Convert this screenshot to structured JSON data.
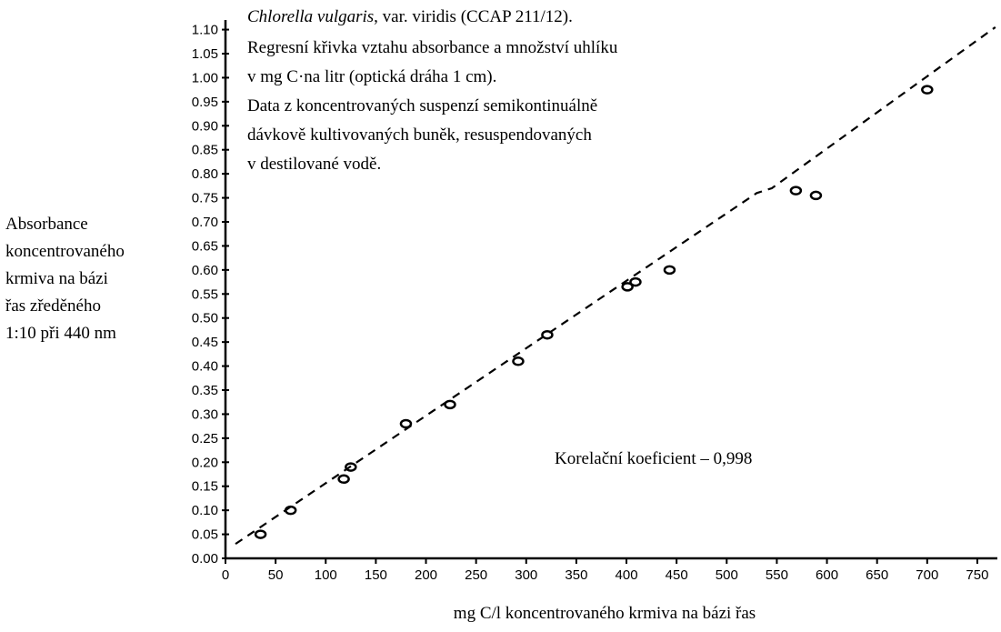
{
  "chart_data": {
    "type": "scatter",
    "title": [
      "Chlorella vulgaris",
      ", var. viridis (CCAP 211/12)."
    ],
    "subtitle": [
      "Regresní křivka vztahu absorbance a množství uhlíku",
      "v mg C·na litr (optická dráha 1 cm).",
      "Data z koncentrovaných suspenzí semikontinuálně",
      "dávkově kultivovaných buněk, resuspendovaných",
      "v destilované vodě."
    ],
    "y_label": [
      "Absorbance",
      "koncentrovaného",
      "krmiva na bázi",
      "řas zředěného",
      "1:10 při 440 nm"
    ],
    "x_label": "mg C/l koncentrovaného krmiva na bázi řas",
    "annotation": "Korelační koeficient – 0,998",
    "xlim": [
      0,
      770
    ],
    "ylim": [
      0,
      1.12
    ],
    "xticks": [
      0,
      50,
      100,
      150,
      200,
      250,
      300,
      350,
      400,
      450,
      500,
      550,
      600,
      650,
      700,
      750
    ],
    "yticks": [
      {
        "value": 0,
        "label": "0.00"
      },
      0.05,
      {
        "value": 0.1,
        "label": "0.10"
      },
      0.15,
      {
        "value": 0.2,
        "label": "0.20"
      },
      0.25,
      {
        "value": 0.3,
        "label": "0.30"
      },
      0.35,
      {
        "value": 0.4,
        "label": "0.40"
      },
      0.45,
      {
        "value": 0.5,
        "label": "0.50"
      },
      0.55,
      {
        "value": 0.6,
        "label": "0.60"
      },
      0.65,
      {
        "value": 0.7,
        "label": "0.70"
      },
      0.75,
      {
        "value": 0.8,
        "label": "0.80"
      },
      0.85,
      {
        "value": 0.9,
        "label": "0.90"
      },
      0.95,
      {
        "value": 1,
        "label": "1.00"
      },
      1.05,
      {
        "value": 1.1,
        "label": "1.10"
      }
    ],
    "grid": false,
    "series": [
      {
        "type": "scatter",
        "color": "#000000",
        "x": [
          35,
          65,
          118,
          125,
          180,
          224,
          292,
          321,
          401,
          409,
          443,
          569,
          589,
          700
        ],
        "values": [
          0.05,
          0.1,
          0.165,
          0.19,
          0.28,
          0.32,
          0.41,
          0.465,
          0.565,
          0.575,
          0.6,
          0.765,
          0.755,
          0.975
        ]
      },
      {
        "type": "line",
        "dashed": true,
        "color": "#000000",
        "x": [
          10,
          530,
          545,
          768
        ],
        "values": [
          0.03,
          0.76,
          0.77,
          1.105
        ]
      }
    ]
  }
}
